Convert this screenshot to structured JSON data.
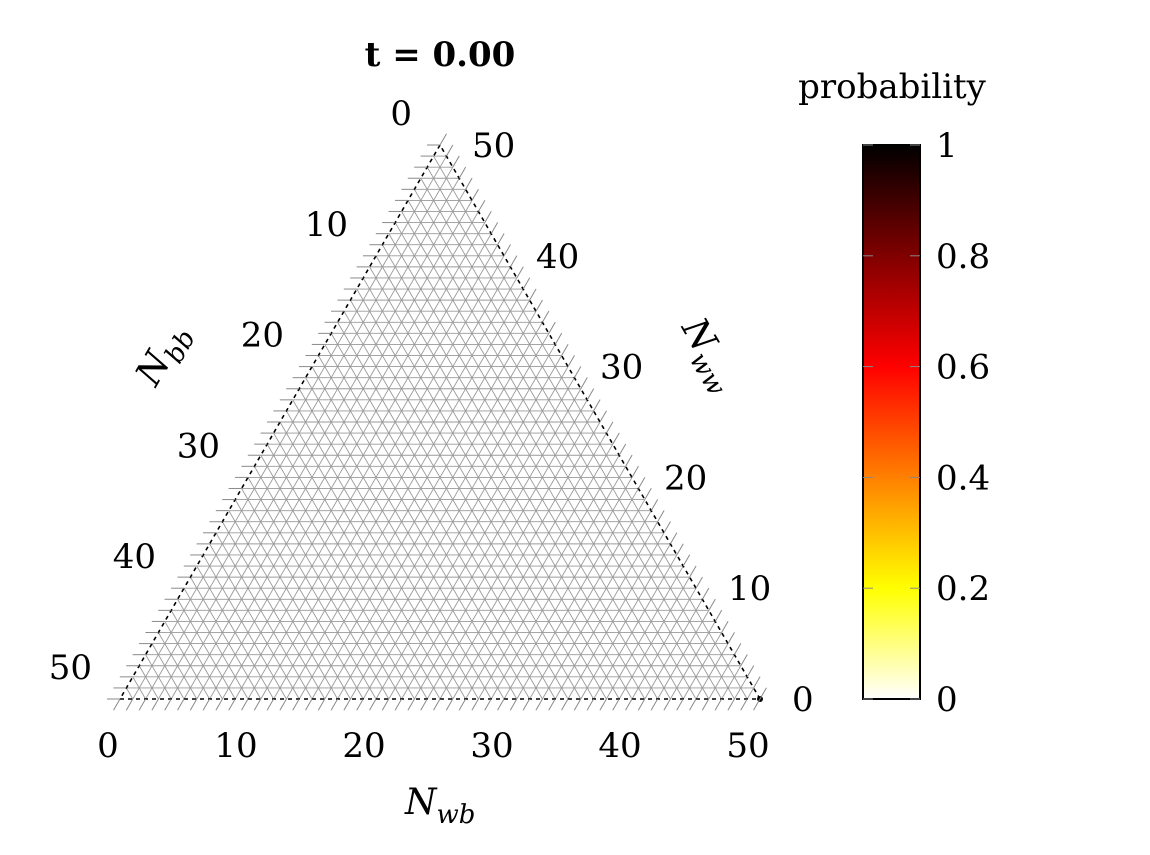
{
  "chart_data": {
    "type": "ternary-heatmap",
    "title": "t = 0.00",
    "axes": {
      "bottom": {
        "label": "N",
        "subscript": "wb",
        "ticks": [
          "0",
          "10",
          "20",
          "30",
          "40",
          "50"
        ],
        "range": [
          0,
          50
        ]
      },
      "left": {
        "label": "N",
        "subscript": "bb",
        "ticks": [
          "0",
          "10",
          "20",
          "30",
          "40",
          "50"
        ],
        "range": [
          0,
          50
        ]
      },
      "right": {
        "label": "N",
        "subscript": "ww",
        "ticks": [
          "0",
          "10",
          "20",
          "30",
          "40",
          "50"
        ],
        "range": [
          0,
          50
        ]
      }
    },
    "total": 50,
    "grid": true,
    "colorbar": {
      "label": "probability",
      "ticks": [
        "0",
        "0.2",
        "0.4",
        "0.6",
        "0.8",
        "1"
      ],
      "range": [
        0,
        1
      ],
      "colormap": [
        "#ffffff",
        "#ffff00",
        "#ff8000",
        "#ff0000",
        "#800000",
        "#000000"
      ]
    },
    "data": [
      {
        "N_wb": 50,
        "N_bb": 0,
        "N_ww": 0,
        "probability": 1
      }
    ]
  }
}
